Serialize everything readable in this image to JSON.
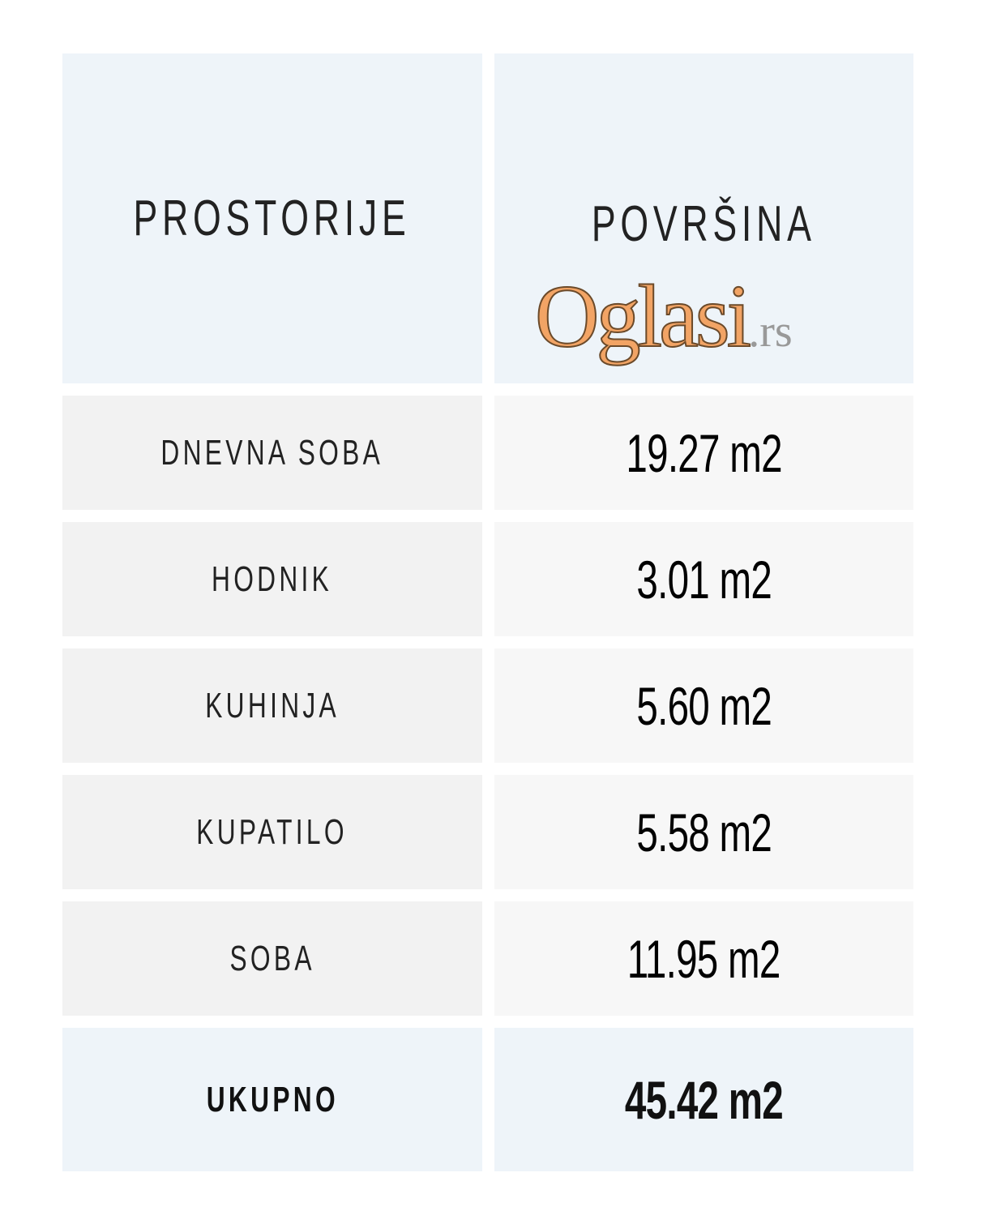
{
  "table": {
    "headers": [
      "PROSTORIJE",
      "POVRŠINA"
    ],
    "rows": [
      {
        "room": "DNEVNA SOBA",
        "area": "19.27 m2"
      },
      {
        "room": "HODNIK",
        "area": "3.01 m2"
      },
      {
        "room": "KUHINJA",
        "area": "5.60 m2"
      },
      {
        "room": "KUPATILO",
        "area": "5.58 m2"
      },
      {
        "room": "SOBA",
        "area": "11.95 m2"
      }
    ],
    "total": {
      "label": "UKUPNO",
      "area": "45.42 m2"
    }
  },
  "watermark": {
    "text": "Oglasi",
    "suffix": ".rs"
  }
}
